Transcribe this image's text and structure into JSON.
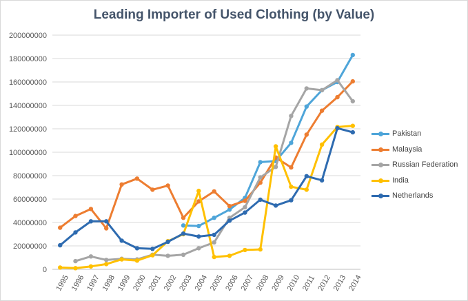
{
  "chart_data": {
    "type": "line",
    "title": "Leading Importer of Used Clothing (by Value)",
    "xlabel": "",
    "ylabel": "",
    "ylim": [
      0,
      200000000
    ],
    "yticks": [
      "0",
      "20000000",
      "40000000",
      "60000000",
      "80000000",
      "100000000",
      "120000000",
      "140000000",
      "160000000",
      "180000000",
      "200000000"
    ],
    "categories": [
      "1995",
      "1996",
      "1997",
      "1998",
      "1999",
      "2000",
      "2001",
      "2002",
      "2003",
      "2004",
      "2005",
      "2006",
      "2007",
      "2008",
      "2009",
      "2010",
      "2011",
      "2012",
      "2013",
      "2014"
    ],
    "grid": true,
    "legend": "right",
    "series": [
      {
        "name": "Pakistan",
        "color": "#4ea5d9",
        "values": [
          null,
          null,
          null,
          null,
          null,
          null,
          null,
          null,
          37500000,
          37000000,
          44000000,
          51000000,
          61000000,
          91500000,
          92500000,
          108000000,
          139000000,
          153000000,
          160000000,
          183000000
        ]
      },
      {
        "name": "Malaysia",
        "color": "#ed7d31",
        "values": [
          35500000,
          45500000,
          51500000,
          35000000,
          72500000,
          77500000,
          68000000,
          71500000,
          44000000,
          58000000,
          66500000,
          54000000,
          58500000,
          74000000,
          95500000,
          87000000,
          115000000,
          135500000,
          147000000,
          160500000
        ]
      },
      {
        "name": "Russian Federation",
        "color": "#a5a5a5",
        "values": [
          null,
          7000000,
          11000000,
          8000000,
          9000000,
          8500000,
          12500000,
          11500000,
          12500000,
          18000000,
          23000000,
          44000000,
          53000000,
          78500000,
          87500000,
          131000000,
          154500000,
          153000000,
          161500000,
          143500000
        ]
      },
      {
        "name": "India",
        "color": "#ffc000",
        "values": [
          1500000,
          1000000,
          2500000,
          4500000,
          8500000,
          7500000,
          12000000,
          24000000,
          30000000,
          67000000,
          10500000,
          11500000,
          16500000,
          17000000,
          105000000,
          70500000,
          68000000,
          106500000,
          121500000,
          122500000
        ]
      },
      {
        "name": "Netherlands",
        "color": "#2e6bb0",
        "values": [
          20500000,
          31500000,
          41000000,
          41000000,
          24500000,
          18000000,
          17500000,
          23500000,
          30500000,
          28000000,
          29500000,
          41500000,
          48500000,
          59500000,
          54500000,
          59000000,
          79500000,
          76000000,
          120500000,
          117000000
        ]
      }
    ]
  }
}
